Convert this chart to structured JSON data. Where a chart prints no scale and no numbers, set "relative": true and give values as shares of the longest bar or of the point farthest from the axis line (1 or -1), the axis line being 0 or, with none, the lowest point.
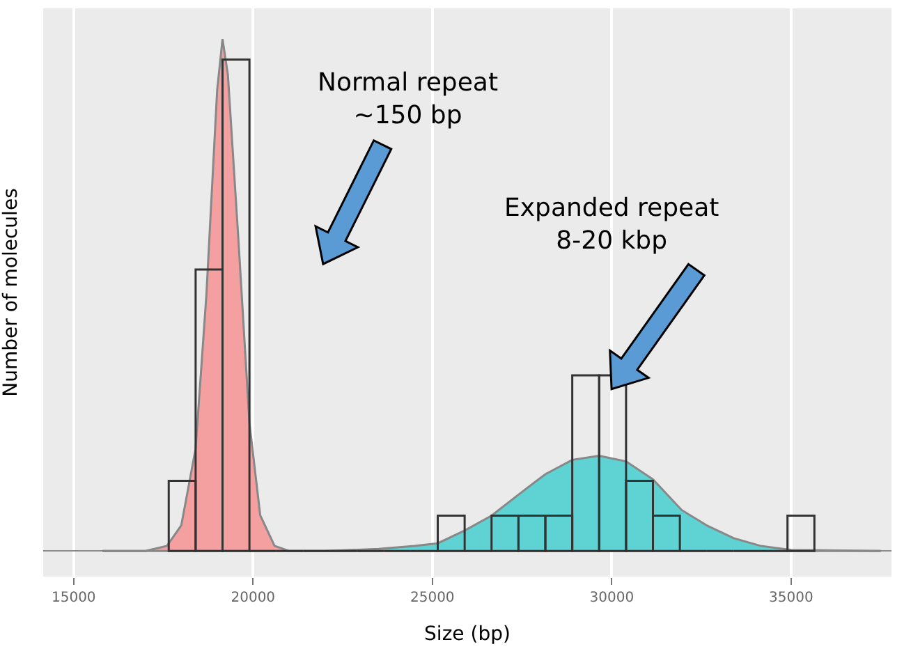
{
  "chart_data": {
    "type": "histogram",
    "relative": true,
    "xlabel": "Size (bp)",
    "ylabel": "Number of molecules",
    "bins": [
      17650,
      18400,
      19150,
      19900,
      20650,
      21400,
      22150,
      22900,
      23650,
      24400,
      25150,
      25900,
      26650,
      27400,
      28150,
      28900,
      29650,
      30400,
      31150,
      31900,
      32650,
      33400,
      34150,
      34900,
      35650
    ],
    "values": [
      0.137,
      0.55,
      0.96,
      0,
      0,
      0,
      0,
      0,
      0,
      0,
      0.069,
      0,
      0.069,
      0.069,
      0.069,
      0.343,
      0.343,
      0.137,
      0.069,
      0,
      0,
      0,
      0,
      0.069
    ],
    "color": "#333333",
    "series": [
      {
        "type": "area",
        "color": "#f4a0a0",
        "x": [
          15800,
          17000,
          17600,
          18000,
          18400,
          18700,
          19000,
          19150,
          19300,
          19600,
          19900,
          20200,
          20600,
          21000,
          37500
        ],
        "values": [
          0,
          0,
          0.01,
          0.05,
          0.2,
          0.5,
          0.9,
          1.0,
          0.93,
          0.6,
          0.25,
          0.07,
          0.01,
          0,
          0
        ]
      },
      {
        "type": "area",
        "color": "#5fd3d3",
        "x": [
          15800,
          22000,
          23500,
          24500,
          25150,
          25900,
          26650,
          27400,
          28150,
          28900,
          29650,
          30400,
          31150,
          31950,
          32650,
          33400,
          34150,
          35000,
          37500
        ],
        "values": [
          0,
          0,
          0.004,
          0.01,
          0.015,
          0.04,
          0.069,
          0.11,
          0.15,
          0.178,
          0.186,
          0.175,
          0.14,
          0.08,
          0.05,
          0.025,
          0.01,
          0.002,
          0
        ]
      }
    ],
    "xlim": [
      14150,
      37800
    ],
    "xticks": [
      15000,
      20000,
      25000,
      30000,
      35000
    ],
    "grid": "x",
    "annotations": [
      "Normal repeat\n~150 bp",
      "Expanded repeat\n8-20 kbp"
    ]
  }
}
